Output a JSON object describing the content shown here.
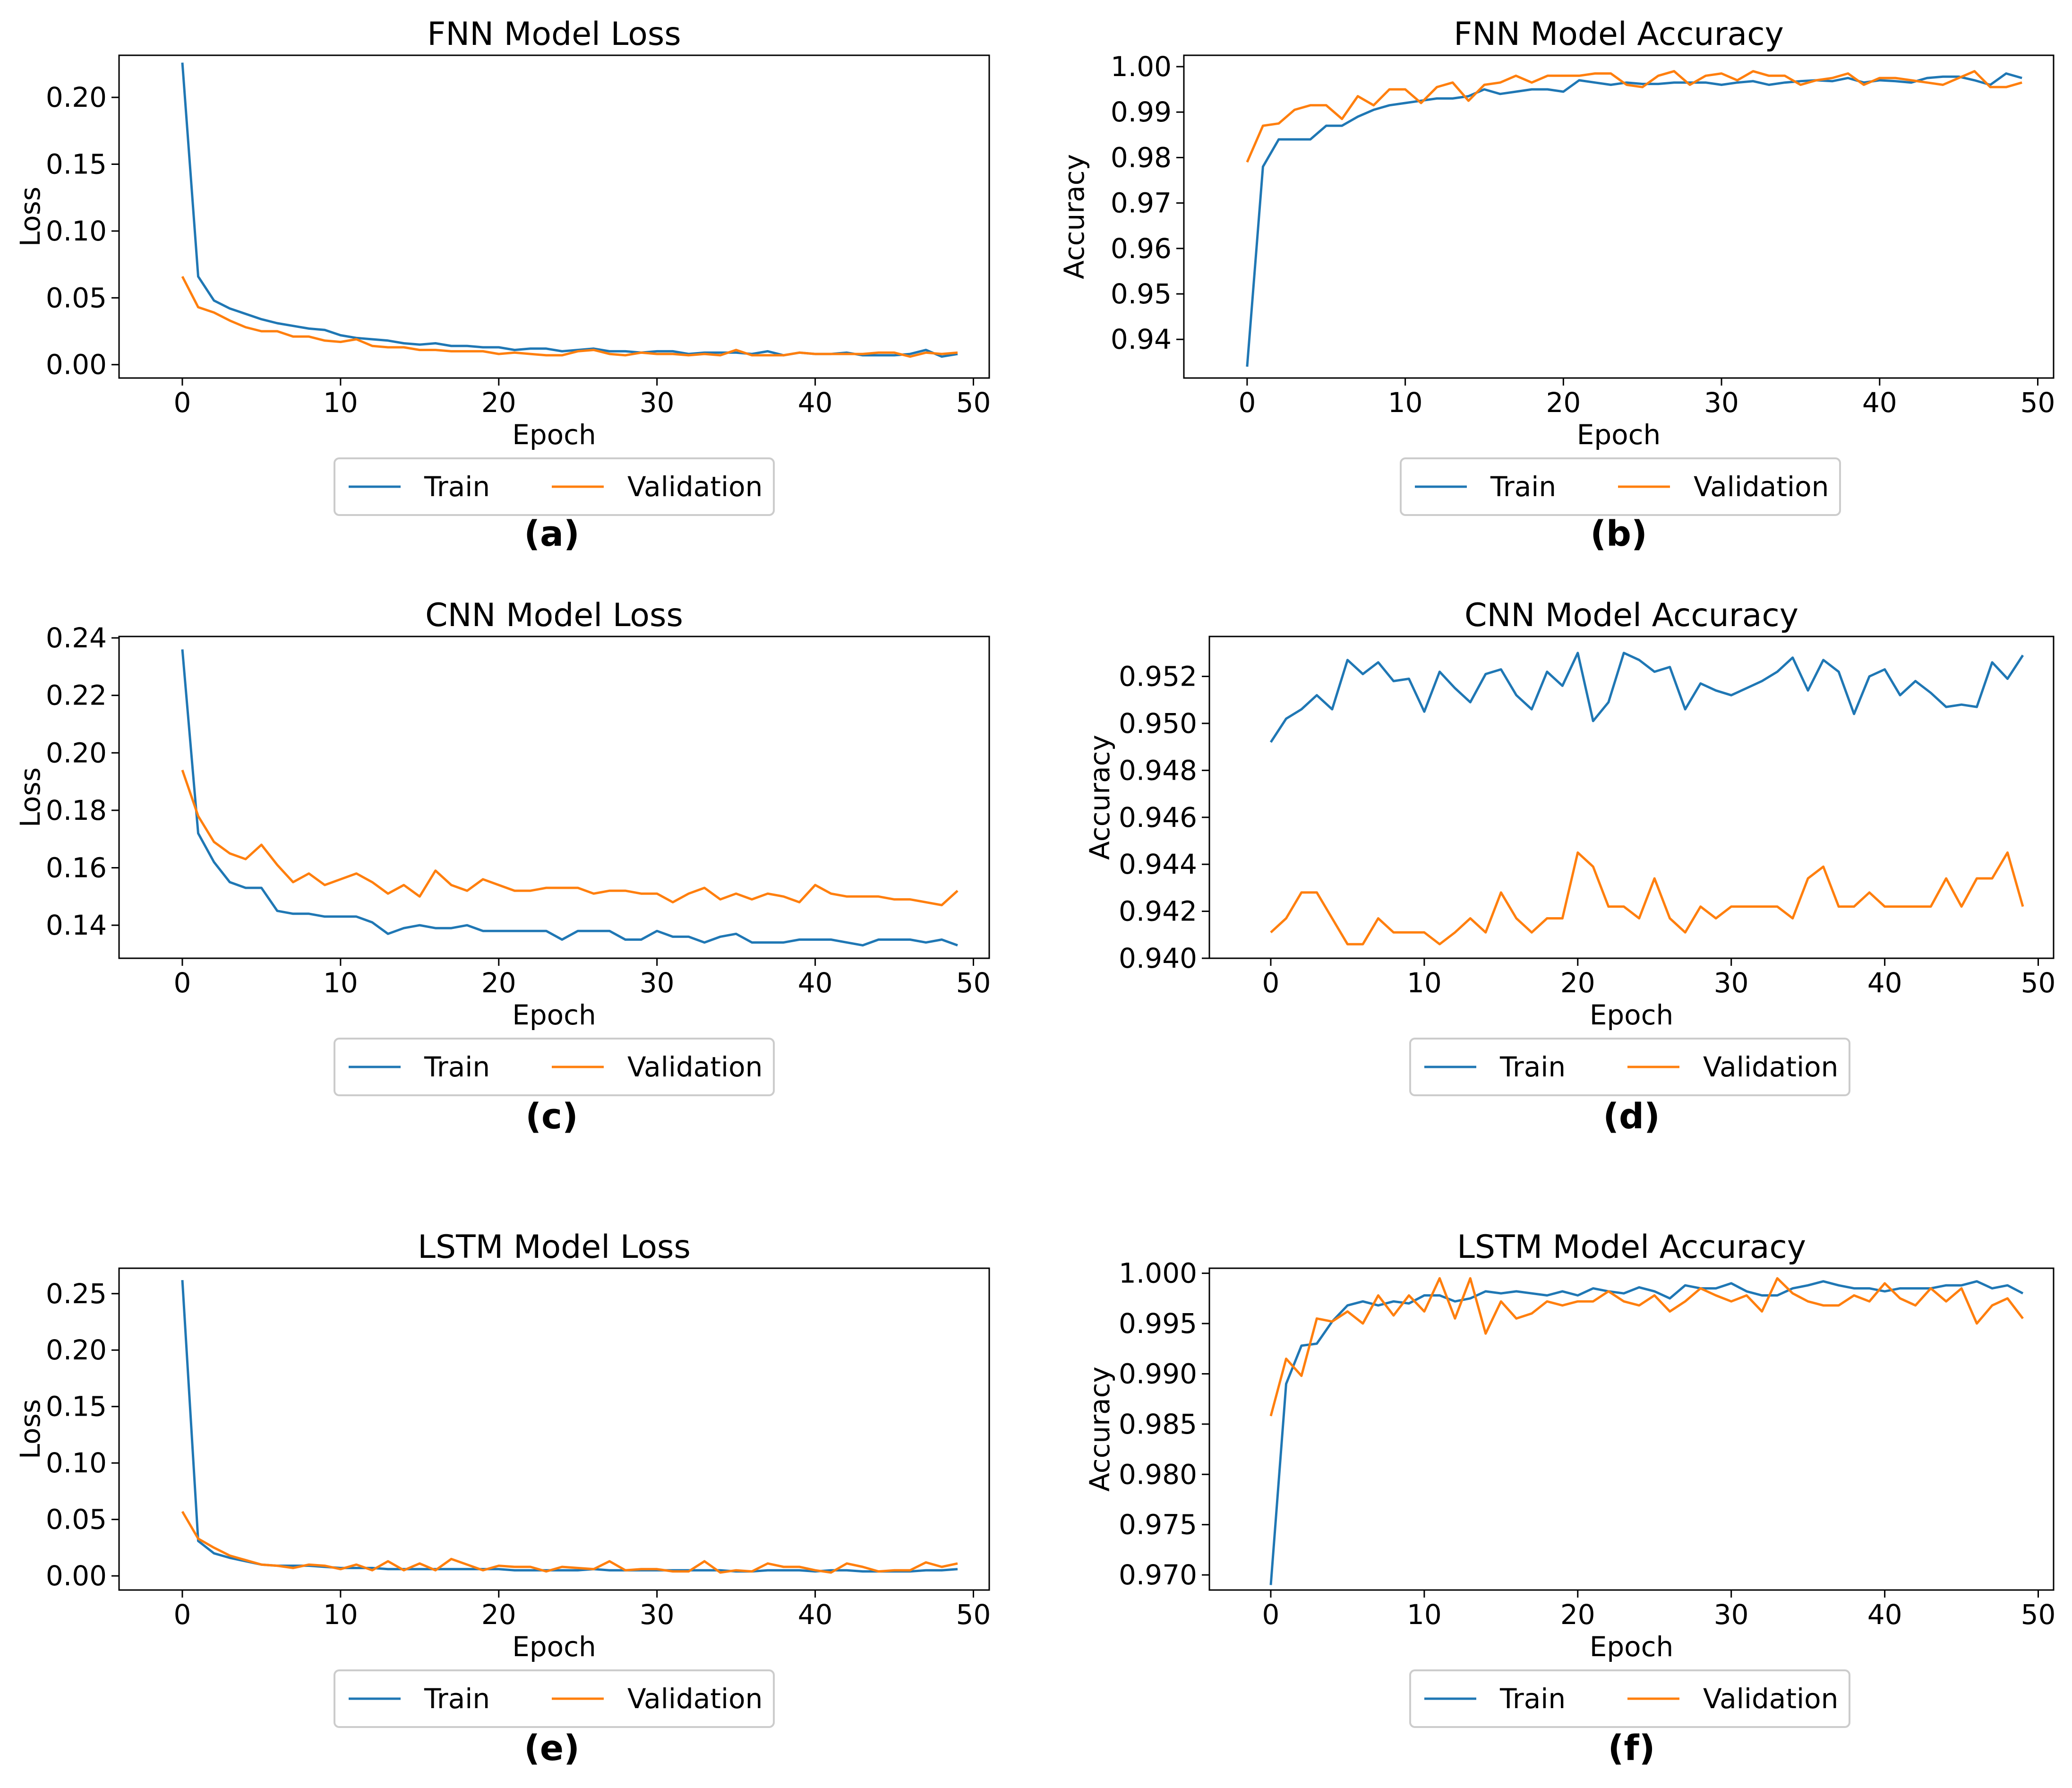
{
  "colors": {
    "train": "#1f77b4",
    "validation": "#ff7f0e",
    "axis": "#000000",
    "legend_border": "#cccccc"
  },
  "legend": {
    "train": "Train",
    "validation": "Validation"
  },
  "chart_data": [
    {
      "id": "a",
      "type": "line",
      "caption": "(a)",
      "title": "FNN Model Loss",
      "xlabel": "Epoch",
      "ylabel": "Loss",
      "xlim": [
        -4,
        51
      ],
      "ylim": [
        -0.01,
        0.2315
      ],
      "xticks": [
        0,
        10,
        20,
        30,
        40,
        50
      ],
      "yticks": [
        0.0,
        0.05,
        0.1,
        0.15,
        0.2
      ],
      "ytick_labels": [
        "0.00",
        "0.05",
        "0.10",
        "0.15",
        "0.20"
      ],
      "series": [
        {
          "name": "Train",
          "values": [
            0.226,
            0.066,
            0.048,
            0.042,
            0.038,
            0.034,
            0.031,
            0.029,
            0.027,
            0.026,
            0.022,
            0.02,
            0.019,
            0.018,
            0.016,
            0.015,
            0.016,
            0.014,
            0.014,
            0.013,
            0.013,
            0.011,
            0.012,
            0.012,
            0.01,
            0.011,
            0.012,
            0.01,
            0.01,
            0.009,
            0.01,
            0.01,
            0.008,
            0.009,
            0.009,
            0.009,
            0.008,
            0.01,
            0.007,
            0.009,
            0.008,
            0.008,
            0.009,
            0.007,
            0.007,
            0.007,
            0.008,
            0.011,
            0.006,
            0.008
          ]
        },
        {
          "name": "Validation",
          "values": [
            0.066,
            0.043,
            0.039,
            0.033,
            0.028,
            0.025,
            0.025,
            0.021,
            0.021,
            0.018,
            0.017,
            0.019,
            0.014,
            0.013,
            0.013,
            0.011,
            0.011,
            0.01,
            0.01,
            0.01,
            0.008,
            0.009,
            0.008,
            0.007,
            0.007,
            0.01,
            0.011,
            0.008,
            0.007,
            0.009,
            0.008,
            0.008,
            0.007,
            0.008,
            0.007,
            0.011,
            0.007,
            0.007,
            0.007,
            0.009,
            0.008,
            0.008,
            0.008,
            0.008,
            0.009,
            0.009,
            0.006,
            0.009,
            0.008,
            0.009
          ]
        }
      ]
    },
    {
      "id": "b",
      "type": "line",
      "caption": "(b)",
      "title": "FNN Model Accuracy",
      "xlabel": "Epoch",
      "ylabel": "Accuracy",
      "xlim": [
        -4,
        51
      ],
      "ylim": [
        0.9315,
        1.0025
      ],
      "xticks": [
        0,
        10,
        20,
        30,
        40,
        50
      ],
      "yticks": [
        0.94,
        0.95,
        0.96,
        0.97,
        0.98,
        0.99,
        1.0
      ],
      "ytick_labels": [
        "0.94",
        "0.95",
        "0.96",
        "0.97",
        "0.98",
        "0.99",
        "1.00"
      ],
      "series": [
        {
          "name": "Train",
          "values": [
            0.934,
            0.978,
            0.984,
            0.984,
            0.984,
            0.987,
            0.987,
            0.989,
            0.9905,
            0.9915,
            0.992,
            0.9925,
            0.993,
            0.993,
            0.9935,
            0.995,
            0.994,
            0.9945,
            0.995,
            0.995,
            0.9945,
            0.997,
            0.9965,
            0.996,
            0.9965,
            0.9962,
            0.9962,
            0.9965,
            0.9965,
            0.9965,
            0.996,
            0.9965,
            0.9968,
            0.996,
            0.9965,
            0.9968,
            0.997,
            0.9968,
            0.9975,
            0.9965,
            0.997,
            0.9968,
            0.9965,
            0.9975,
            0.9978,
            0.9978,
            0.997,
            0.996,
            0.9985,
            0.9975
          ]
        },
        {
          "name": "Validation",
          "values": [
            0.979,
            0.987,
            0.9875,
            0.9905,
            0.9915,
            0.9915,
            0.9885,
            0.9935,
            0.9915,
            0.995,
            0.995,
            0.992,
            0.9955,
            0.9965,
            0.9925,
            0.996,
            0.9965,
            0.998,
            0.9965,
            0.998,
            0.998,
            0.998,
            0.9985,
            0.9985,
            0.996,
            0.9955,
            0.998,
            0.999,
            0.996,
            0.998,
            0.9985,
            0.997,
            0.999,
            0.998,
            0.998,
            0.996,
            0.997,
            0.9975,
            0.9985,
            0.996,
            0.9975,
            0.9975,
            0.997,
            0.9965,
            0.996,
            0.9975,
            0.999,
            0.9955,
            0.9955,
            0.9965
          ]
        }
      ]
    },
    {
      "id": "c",
      "type": "line",
      "caption": "(c)",
      "title": "CNN Model Loss",
      "xlabel": "Epoch",
      "ylabel": "Loss",
      "xlim": [
        -4,
        51
      ],
      "ylim": [
        0.1285,
        0.2405
      ],
      "xticks": [
        0,
        10,
        20,
        30,
        40,
        50
      ],
      "yticks": [
        0.14,
        0.16,
        0.18,
        0.2,
        0.22,
        0.24
      ],
      "ytick_labels": [
        "0.14",
        "0.16",
        "0.18",
        "0.20",
        "0.22",
        "0.24"
      ],
      "series": [
        {
          "name": "Train",
          "values": [
            0.236,
            0.172,
            0.162,
            0.155,
            0.153,
            0.153,
            0.145,
            0.144,
            0.144,
            0.143,
            0.143,
            0.143,
            0.141,
            0.137,
            0.139,
            0.14,
            0.139,
            0.139,
            0.14,
            0.138,
            0.138,
            0.138,
            0.138,
            0.138,
            0.135,
            0.138,
            0.138,
            0.138,
            0.135,
            0.135,
            0.138,
            0.136,
            0.136,
            0.134,
            0.136,
            0.137,
            0.134,
            0.134,
            0.134,
            0.135,
            0.135,
            0.135,
            0.134,
            0.133,
            0.135,
            0.135,
            0.135,
            0.134,
            0.135,
            0.133
          ]
        },
        {
          "name": "Validation",
          "values": [
            0.194,
            0.178,
            0.169,
            0.165,
            0.163,
            0.168,
            0.161,
            0.155,
            0.158,
            0.154,
            0.156,
            0.158,
            0.155,
            0.151,
            0.154,
            0.15,
            0.159,
            0.154,
            0.152,
            0.156,
            0.154,
            0.152,
            0.152,
            0.153,
            0.153,
            0.153,
            0.151,
            0.152,
            0.152,
            0.151,
            0.151,
            0.148,
            0.151,
            0.153,
            0.149,
            0.151,
            0.149,
            0.151,
            0.15,
            0.148,
            0.154,
            0.151,
            0.15,
            0.15,
            0.15,
            0.149,
            0.149,
            0.148,
            0.147,
            0.152
          ]
        }
      ]
    },
    {
      "id": "d",
      "type": "line",
      "caption": "(d)",
      "title": "CNN Model Accuracy",
      "xlabel": "Epoch",
      "ylabel": "Accuracy",
      "xlim": [
        -4,
        51
      ],
      "ylim": [
        0.94,
        0.9537
      ],
      "xticks": [
        0,
        10,
        20,
        30,
        40,
        50
      ],
      "yticks": [
        0.94,
        0.942,
        0.944,
        0.946,
        0.948,
        0.95,
        0.952
      ],
      "ytick_labels": [
        "0.940",
        "0.942",
        "0.944",
        "0.946",
        "0.948",
        "0.950",
        "0.952"
      ],
      "series": [
        {
          "name": "Train",
          "values": [
            0.9492,
            0.9502,
            0.9506,
            0.9512,
            0.9506,
            0.9527,
            0.9521,
            0.9526,
            0.9518,
            0.9519,
            0.9505,
            0.9522,
            0.9515,
            0.9509,
            0.9521,
            0.9523,
            0.9512,
            0.9506,
            0.9522,
            0.9516,
            0.953,
            0.9501,
            0.9509,
            0.953,
            0.9527,
            0.9522,
            0.9524,
            0.9506,
            0.9517,
            0.9514,
            0.9512,
            0.9515,
            0.9518,
            0.9522,
            0.9528,
            0.9514,
            0.9527,
            0.9522,
            0.9504,
            0.952,
            0.9523,
            0.9512,
            0.9518,
            0.9513,
            0.9507,
            0.9508,
            0.9507,
            0.9526,
            0.9519,
            0.9529
          ]
        },
        {
          "name": "Validation",
          "values": [
            0.9411,
            0.9417,
            0.9428,
            0.9428,
            0.9417,
            0.9406,
            0.9406,
            0.9417,
            0.9411,
            0.9411,
            0.9411,
            0.9406,
            0.9411,
            0.9417,
            0.9411,
            0.9428,
            0.9417,
            0.9411,
            0.9417,
            0.9417,
            0.9445,
            0.9439,
            0.9422,
            0.9422,
            0.9417,
            0.9434,
            0.9417,
            0.9411,
            0.9422,
            0.9417,
            0.9422,
            0.9422,
            0.9422,
            0.9422,
            0.9417,
            0.9434,
            0.9439,
            0.9422,
            0.9422,
            0.9428,
            0.9422,
            0.9422,
            0.9422,
            0.9422,
            0.9434,
            0.9422,
            0.9434,
            0.9434,
            0.9445,
            0.9422
          ]
        }
      ]
    },
    {
      "id": "e",
      "type": "line",
      "caption": "(e)",
      "title": "LSTM Model Loss",
      "xlabel": "Epoch",
      "ylabel": "Loss",
      "xlim": [
        -4,
        51
      ],
      "ylim": [
        -0.0125,
        0.2725
      ],
      "xticks": [
        0,
        10,
        20,
        30,
        40,
        50
      ],
      "yticks": [
        0.0,
        0.05,
        0.1,
        0.15,
        0.2,
        0.25
      ],
      "ytick_labels": [
        "0.00",
        "0.05",
        "0.10",
        "0.15",
        "0.20",
        "0.25"
      ],
      "series": [
        {
          "name": "Train",
          "values": [
            0.262,
            0.031,
            0.02,
            0.016,
            0.013,
            0.01,
            0.009,
            0.009,
            0.009,
            0.008,
            0.007,
            0.007,
            0.007,
            0.006,
            0.006,
            0.006,
            0.006,
            0.006,
            0.006,
            0.006,
            0.006,
            0.005,
            0.005,
            0.005,
            0.005,
            0.005,
            0.006,
            0.005,
            0.005,
            0.005,
            0.005,
            0.005,
            0.005,
            0.005,
            0.005,
            0.004,
            0.004,
            0.005,
            0.005,
            0.005,
            0.004,
            0.005,
            0.005,
            0.004,
            0.004,
            0.004,
            0.004,
            0.005,
            0.005,
            0.006
          ]
        },
        {
          "name": "Validation",
          "values": [
            0.057,
            0.033,
            0.025,
            0.018,
            0.014,
            0.01,
            0.009,
            0.007,
            0.01,
            0.009,
            0.006,
            0.01,
            0.005,
            0.013,
            0.005,
            0.011,
            0.005,
            0.015,
            0.01,
            0.005,
            0.009,
            0.008,
            0.008,
            0.004,
            0.008,
            0.007,
            0.006,
            0.013,
            0.005,
            0.006,
            0.006,
            0.004,
            0.004,
            0.013,
            0.003,
            0.005,
            0.004,
            0.011,
            0.008,
            0.008,
            0.005,
            0.003,
            0.011,
            0.008,
            0.004,
            0.005,
            0.005,
            0.012,
            0.008,
            0.011
          ]
        }
      ]
    },
    {
      "id": "f",
      "type": "line",
      "caption": "(f)",
      "title": "LSTM Model Accuracy",
      "xlabel": "Epoch",
      "ylabel": "Accuracy",
      "xlim": [
        -4,
        51
      ],
      "ylim": [
        0.9685,
        1.0005
      ],
      "xticks": [
        0,
        10,
        20,
        30,
        40,
        50
      ],
      "yticks": [
        0.97,
        0.975,
        0.98,
        0.985,
        0.99,
        0.995,
        1.0
      ],
      "ytick_labels": [
        "0.970",
        "0.975",
        "0.980",
        "0.985",
        "0.990",
        "0.995",
        "1.000"
      ],
      "series": [
        {
          "name": "Train",
          "values": [
            0.969,
            0.989,
            0.9928,
            0.993,
            0.9952,
            0.9968,
            0.9972,
            0.9968,
            0.9972,
            0.997,
            0.9978,
            0.9978,
            0.9972,
            0.9975,
            0.9982,
            0.998,
            0.9982,
            0.998,
            0.9978,
            0.9982,
            0.9978,
            0.9985,
            0.9982,
            0.998,
            0.9986,
            0.9982,
            0.9975,
            0.9988,
            0.9985,
            0.9985,
            0.999,
            0.9982,
            0.9978,
            0.9978,
            0.9985,
            0.9988,
            0.9992,
            0.9988,
            0.9985,
            0.9985,
            0.9982,
            0.9985,
            0.9985,
            0.9985,
            0.9988,
            0.9988,
            0.9992,
            0.9985,
            0.9988,
            0.998
          ]
        },
        {
          "name": "Validation",
          "values": [
            0.9858,
            0.9915,
            0.9898,
            0.9955,
            0.9952,
            0.9962,
            0.995,
            0.9978,
            0.9958,
            0.9978,
            0.9962,
            0.9995,
            0.9955,
            0.9995,
            0.994,
            0.9972,
            0.9955,
            0.996,
            0.9972,
            0.9968,
            0.9972,
            0.9972,
            0.9982,
            0.9972,
            0.9968,
            0.9978,
            0.9962,
            0.9972,
            0.9985,
            0.9978,
            0.9972,
            0.9978,
            0.9962,
            0.9995,
            0.998,
            0.9972,
            0.9968,
            0.9968,
            0.9978,
            0.9972,
            0.999,
            0.9975,
            0.9968,
            0.9985,
            0.9972,
            0.9985,
            0.995,
            0.9968,
            0.9975,
            0.9955
          ]
        }
      ]
    }
  ]
}
